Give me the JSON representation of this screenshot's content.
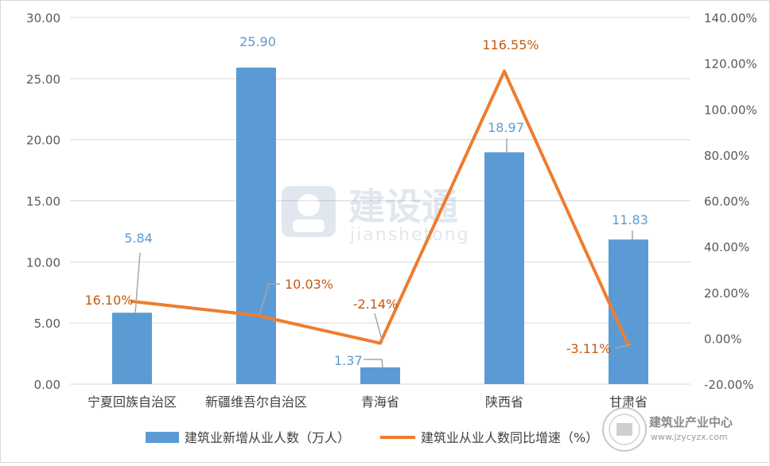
{
  "chart_data": {
    "type": "bar",
    "categories": [
      "宁夏回族自治区",
      "新疆维吾尔自治区",
      "青海省",
      "陕西省",
      "甘肃省"
    ],
    "series": [
      {
        "name": "建筑业新增从业人数（万人）",
        "type": "bar",
        "axis": "left",
        "color": "#5b9bd5",
        "values": [
          5.84,
          25.9,
          1.37,
          18.97,
          11.83
        ],
        "labels": [
          "5.84",
          "25.90",
          "1.37",
          "18.97",
          "11.83"
        ]
      },
      {
        "name": "建筑业从业人数同比增速（%）",
        "type": "line",
        "axis": "right",
        "color": "#ed7d31",
        "values": [
          16.1,
          10.03,
          -2.14,
          116.55,
          -3.11
        ],
        "labels": [
          "16.10%",
          "10.03%",
          "-2.14%",
          "116.55%",
          "-3.11%"
        ]
      }
    ],
    "y_left": {
      "ylim": [
        0,
        30
      ],
      "ticks": [
        "0.00",
        "5.00",
        "10.00",
        "15.00",
        "20.00",
        "25.00",
        "30.00"
      ]
    },
    "y_right": {
      "ylim": [
        -20,
        140
      ],
      "ticks": [
        "-20.00%",
        "0.00%",
        "20.00%",
        "40.00%",
        "60.00%",
        "80.00%",
        "100.00%",
        "120.00%",
        "140.00%"
      ]
    },
    "grid": true,
    "legend_position": "bottom"
  },
  "watermark": {
    "brand_cn": "建设通",
    "brand_en": "jianshetong"
  },
  "corner_logo": {
    "name": "建筑业产业中心",
    "url": "www.jzycyzx.com"
  },
  "colors": {
    "bar": "#5b9bd5",
    "line": "#ed7d31",
    "grid": "#d9d9d9",
    "axis_text": "#595959"
  }
}
